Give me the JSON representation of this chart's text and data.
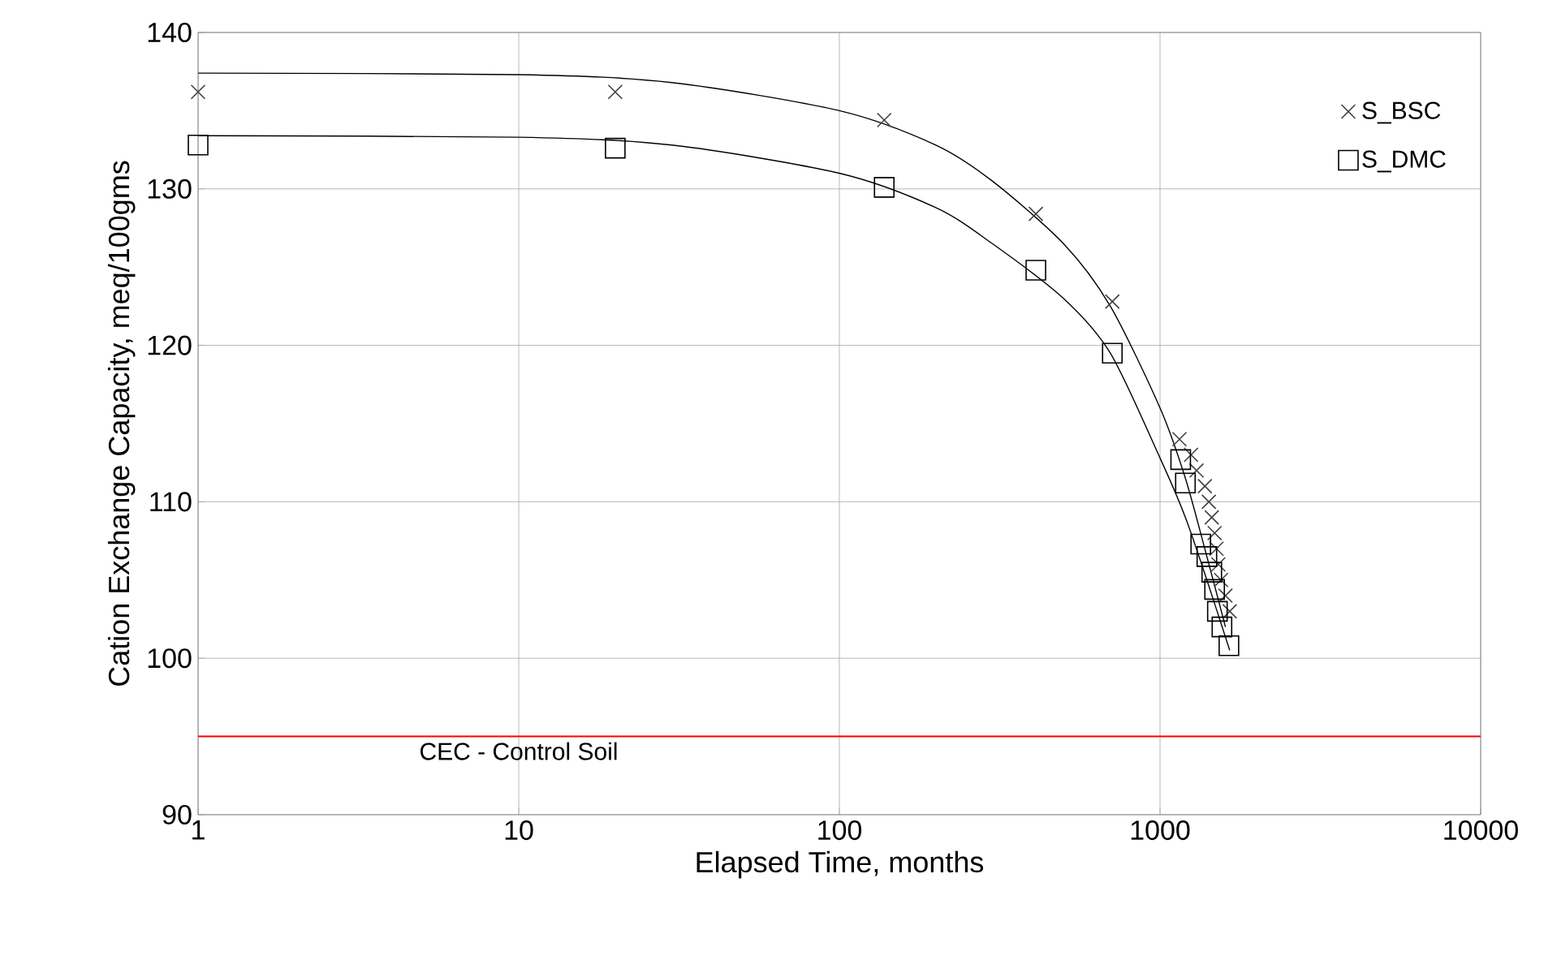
{
  "chart_data": {
    "type": "scatter",
    "xlabel": "Elapsed Time, months",
    "ylabel": "Cation Exchange Capacity, meq/100gms",
    "log": "x",
    "grid": true,
    "legend": "top right",
    "xlim": [
      1,
      10000
    ],
    "xticks": [
      1,
      10,
      100,
      1000,
      10000
    ],
    "ylim": [
      90,
      140
    ],
    "yticks": [
      90,
      100,
      110,
      120,
      130,
      140
    ],
    "series": [
      {
        "name": "S_BSC",
        "marker": "cross",
        "color": "#404040",
        "x": [
          1,
          20,
          138,
          410,
          710,
          1150,
          1250,
          1300,
          1380,
          1420,
          1450,
          1480,
          1500,
          1520,
          1550,
          1600,
          1650
        ],
        "values": [
          136.2,
          136.2,
          134.4,
          128.4,
          122.8,
          114,
          113,
          112,
          111,
          110,
          109,
          108,
          107,
          106,
          105,
          104,
          103
        ]
      },
      {
        "name": "S_DMC",
        "marker": "square",
        "color": "#000000",
        "x": [
          1,
          20,
          138,
          410,
          710,
          1160,
          1200,
          1340,
          1400,
          1450,
          1480,
          1510,
          1560,
          1640
        ],
        "values": [
          132.8,
          132.6,
          130.1,
          124.8,
          119.5,
          112.7,
          111.2,
          107.3,
          106.5,
          105.5,
          104.4,
          103,
          102,
          100.8
        ]
      },
      {
        "type": "line",
        "marker": "none",
        "color": "#000000",
        "x": [
          1,
          10,
          30,
          100,
          200,
          300,
          500,
          700,
          1000,
          1200,
          1400,
          1600
        ],
        "values": [
          137.4,
          137.3,
          136.8,
          135,
          132.8,
          130.5,
          126.5,
          122.5,
          116,
          111.5,
          106.5,
          102
        ]
      },
      {
        "type": "line",
        "marker": "none",
        "color": "#000000",
        "x": [
          1,
          10,
          30,
          100,
          200,
          300,
          500,
          700,
          1000,
          1200,
          1400,
          1650
        ],
        "values": [
          133.4,
          133.3,
          132.8,
          131,
          128.8,
          126.5,
          123,
          119.5,
          112.8,
          109,
          105,
          100.5
        ]
      }
    ],
    "ref_lines": [
      {
        "axis": "y",
        "value": 95,
        "label": "CEC - Control Soil",
        "color": "#ff0000"
      }
    ]
  }
}
